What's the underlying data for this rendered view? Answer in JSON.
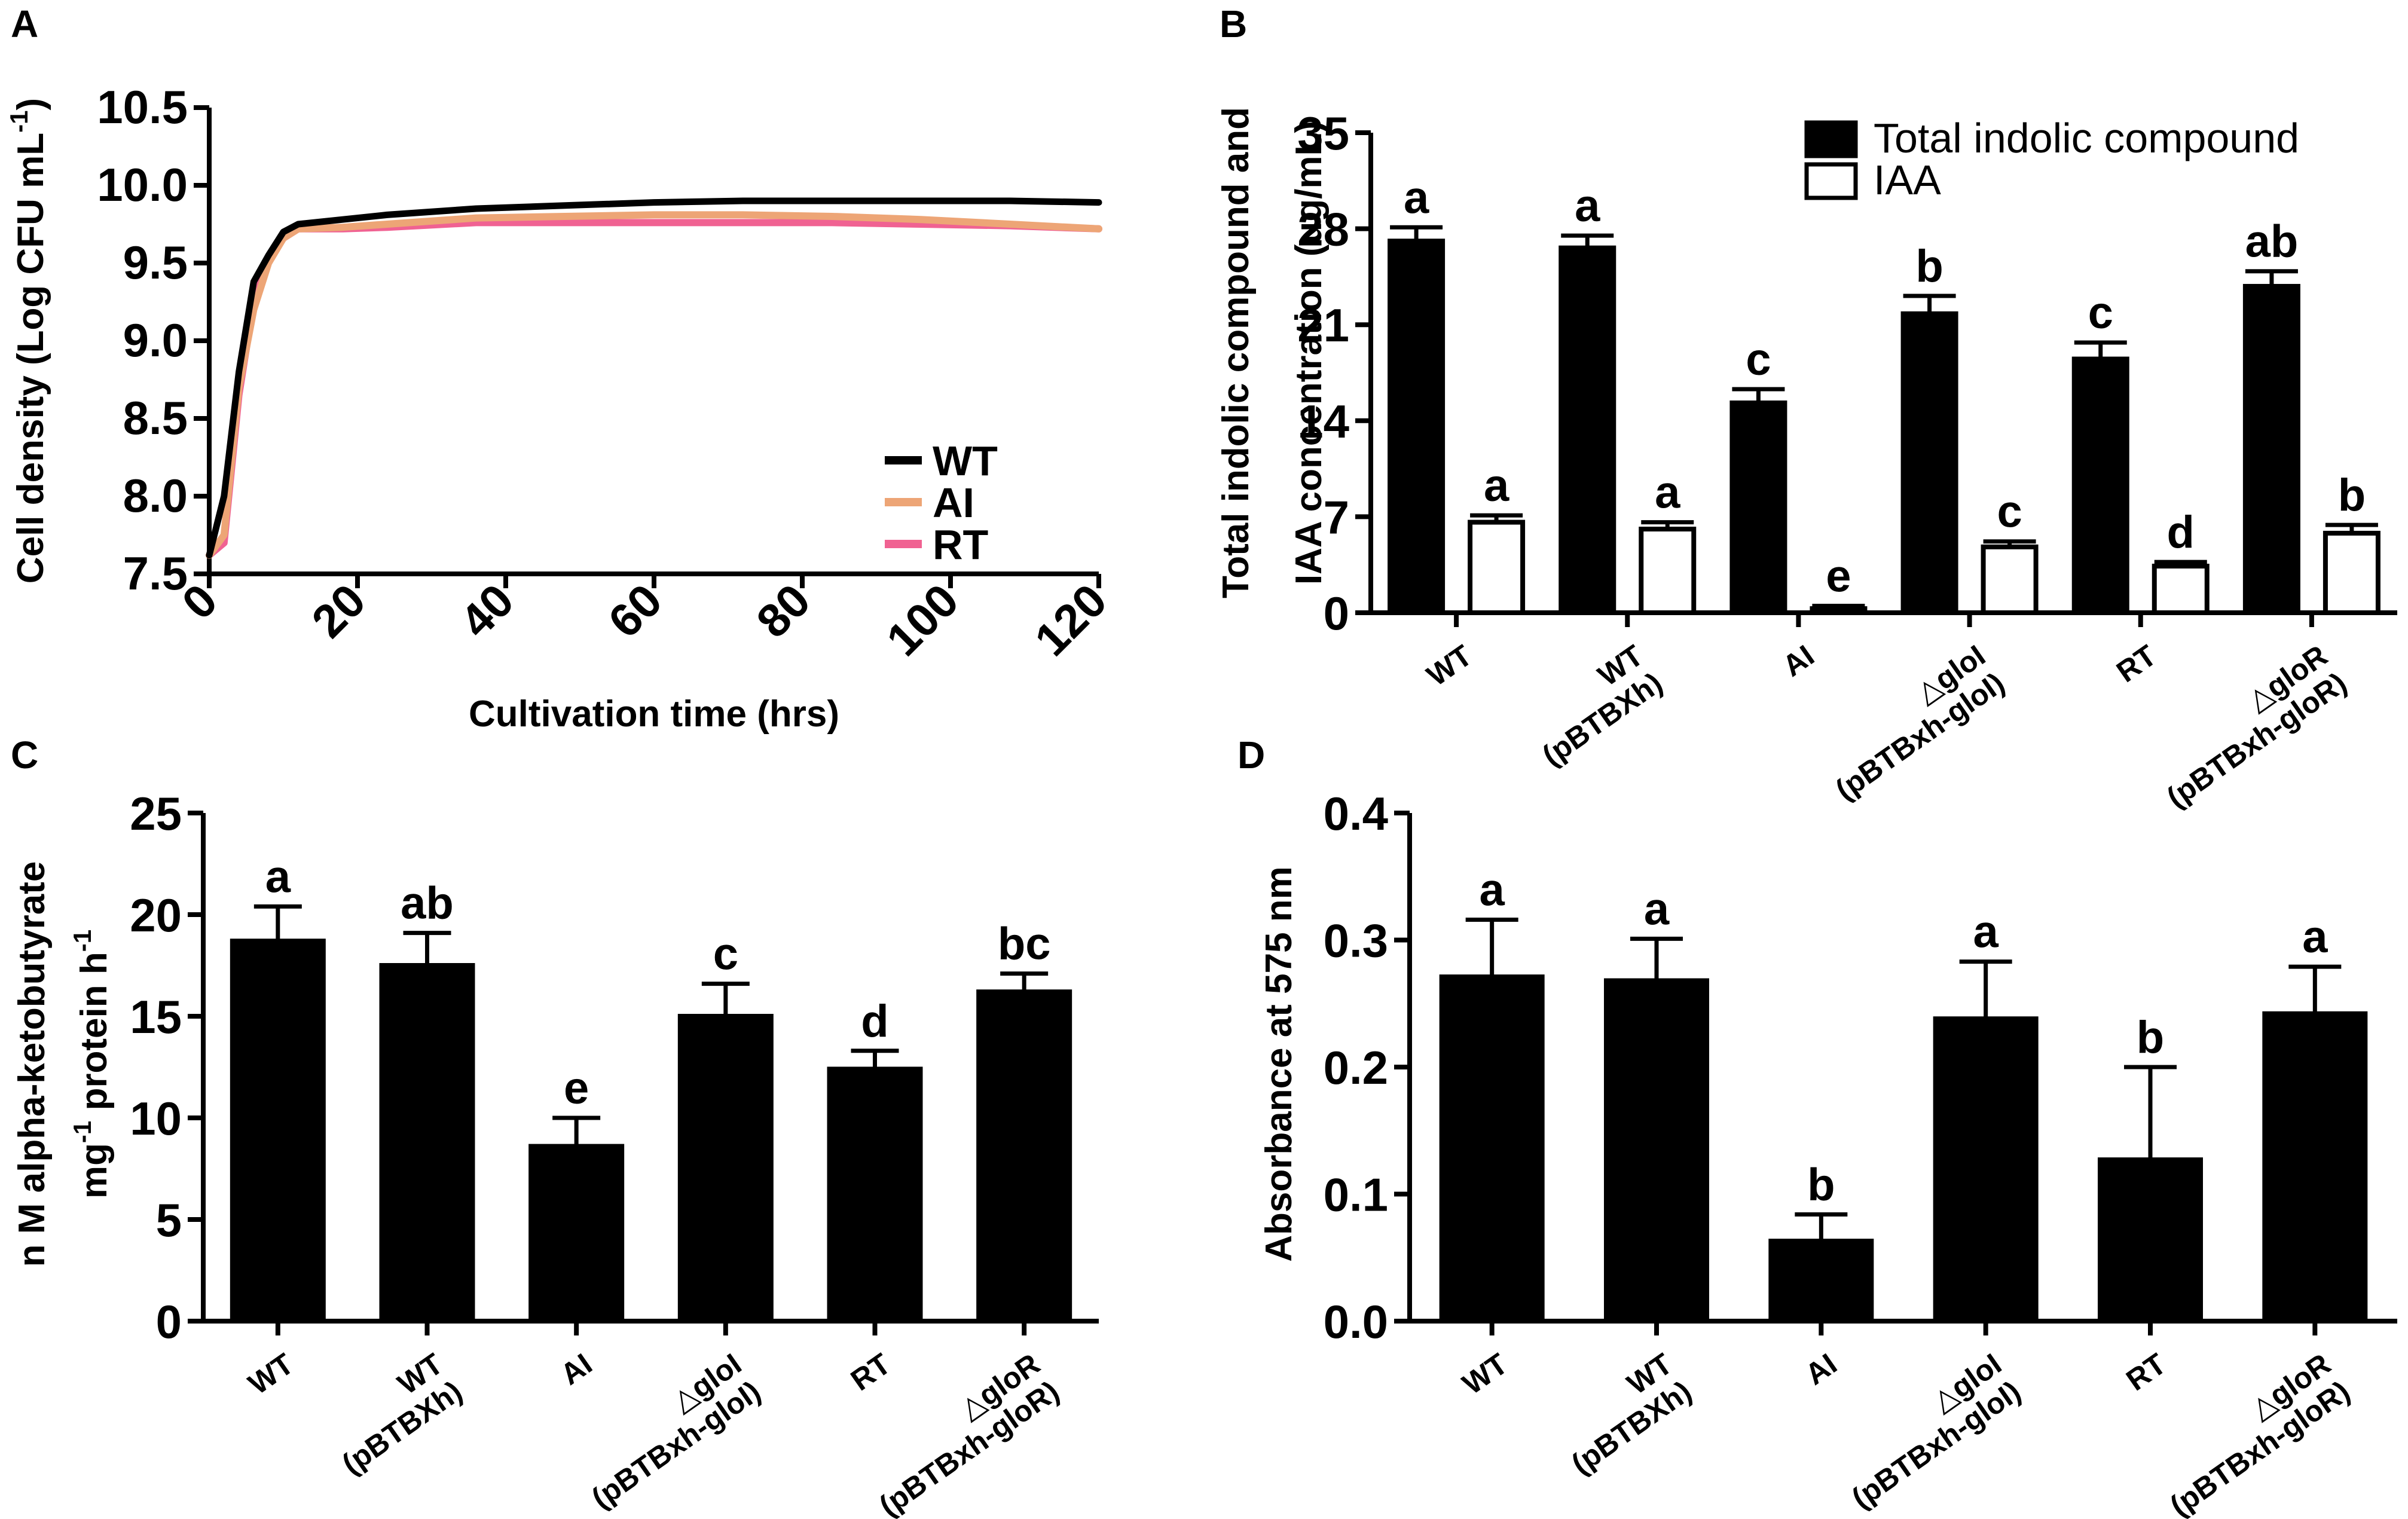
{
  "chart_data": [
    {
      "panel": "A",
      "type": "line",
      "xlabel": "Cultivation time (hrs)",
      "ylabel": "Cell density (Log CFU mL",
      "ylabel_sup": "-1",
      "ylabel_close": ")",
      "xlim": [
        0,
        120
      ],
      "ylim": [
        7.5,
        10.5
      ],
      "xticks": [
        "0",
        "20",
        "40",
        "60",
        "80",
        "100",
        "120"
      ],
      "yticks": [
        "7.5",
        "8.0",
        "8.5",
        "9.0",
        "9.5",
        "10.0",
        "10.5"
      ],
      "legend_position": "bottom-right",
      "series": [
        {
          "name": "WT",
          "color": "#000000",
          "x": [
            0,
            2,
            4,
            6,
            8,
            10,
            12,
            18,
            24,
            36,
            48,
            60,
            72,
            84,
            96,
            108,
            120
          ],
          "y": [
            7.62,
            8.0,
            8.8,
            9.38,
            9.55,
            9.7,
            9.75,
            9.78,
            9.81,
            9.85,
            9.87,
            9.89,
            9.9,
            9.9,
            9.9,
            9.9,
            9.89
          ]
        },
        {
          "name": "AI",
          "color": "#EDA576",
          "x": [
            0,
            2,
            4,
            6,
            8,
            10,
            12,
            18,
            24,
            36,
            48,
            60,
            72,
            84,
            96,
            108,
            120
          ],
          "y": [
            7.62,
            7.75,
            8.7,
            9.2,
            9.5,
            9.66,
            9.72,
            9.73,
            9.75,
            9.79,
            9.8,
            9.81,
            9.81,
            9.8,
            9.78,
            9.75,
            9.72
          ]
        },
        {
          "name": "RT",
          "color": "#F06292",
          "x": [
            0,
            2,
            4,
            6,
            8,
            10,
            12,
            18,
            24,
            36,
            48,
            60,
            72,
            84,
            96,
            108,
            120
          ],
          "y": [
            7.62,
            7.7,
            8.65,
            9.25,
            9.52,
            9.66,
            9.72,
            9.72,
            9.73,
            9.76,
            9.76,
            9.76,
            9.76,
            9.76,
            9.75,
            9.74,
            9.72
          ]
        }
      ]
    },
    {
      "panel": "B",
      "type": "bar",
      "ylabel_line1": "Total indolic compound and",
      "ylabel_line2": "IAA concentration  (ug/mL)",
      "ylim": [
        0,
        35
      ],
      "yticks": [
        "0",
        "7",
        "14",
        "21",
        "28",
        "35"
      ],
      "categories": [
        "WT",
        "WT|(pBTBXh)",
        "AI",
        "△gloI|(pBTBxh-gloI)",
        "RT",
        "△gloR|(pBTBxh-gloR)"
      ],
      "legend_position": "top-right",
      "series": [
        {
          "name": "Total indolic compound",
          "fill": "#000000",
          "values": [
            27.1,
            26.6,
            15.3,
            21.8,
            18.5,
            23.8
          ],
          "errors": [
            1.0,
            0.9,
            1.0,
            1.3,
            1.2,
            1.1
          ],
          "letters": [
            "a",
            "a",
            "c",
            "b",
            "c",
            "ab"
          ]
        },
        {
          "name": "IAA",
          "fill": "#ffffff",
          "values": [
            6.6,
            6.1,
            0.3,
            4.8,
            3.4,
            5.8
          ],
          "errors": [
            0.5,
            0.5,
            0.2,
            0.4,
            0.3,
            0.6
          ],
          "letters": [
            "a",
            "a",
            "e",
            "c",
            "d",
            "b"
          ]
        }
      ]
    },
    {
      "panel": "C",
      "type": "bar",
      "ylabel_line1": "n M  alpha-ketobutyrate",
      "ylabel_line2a": "mg",
      "ylabel_line2_sup1": "-1",
      "ylabel_line2b": " protein h",
      "ylabel_line2_sup2": "-1",
      "ylim": [
        0,
        25
      ],
      "yticks": [
        "0",
        "5",
        "10",
        "15",
        "20",
        "25"
      ],
      "categories": [
        "WT",
        "WT|(pBTBXh)",
        "AI",
        "△gloI|(pBTBxh-gloI)",
        "RT",
        "△gloR|(pBTBxh-gloR)"
      ],
      "series": [
        {
          "name": "alpha-ketobutyrate",
          "fill": "#000000",
          "values": [
            18.7,
            17.5,
            8.6,
            15.0,
            12.4,
            16.2
          ],
          "errors": [
            1.7,
            1.6,
            1.4,
            1.6,
            0.9,
            0.9
          ],
          "letters": [
            "a",
            "ab",
            "e",
            "c",
            "d",
            "bc"
          ]
        }
      ]
    },
    {
      "panel": "D",
      "type": "bar",
      "ylabel": "Absorbance at 575 nm",
      "ylim": [
        0,
        0.4
      ],
      "yticks": [
        "0.0",
        "0.1",
        "0.2",
        "0.3",
        "0.4"
      ],
      "categories": [
        "WT",
        "WT|(pBTBXh)",
        "AI",
        "△gloI|(pBTBxh-gloI)",
        "RT",
        "△gloR|(pBTBxh-gloR)"
      ],
      "series": [
        {
          "name": "Absorbance",
          "fill": "#000000",
          "values": [
            0.271,
            0.268,
            0.063,
            0.238,
            0.127,
            0.242
          ],
          "errors": [
            0.045,
            0.033,
            0.021,
            0.045,
            0.073,
            0.037
          ],
          "letters": [
            "a",
            "a",
            "b",
            "a",
            "b",
            "a"
          ]
        }
      ]
    }
  ]
}
